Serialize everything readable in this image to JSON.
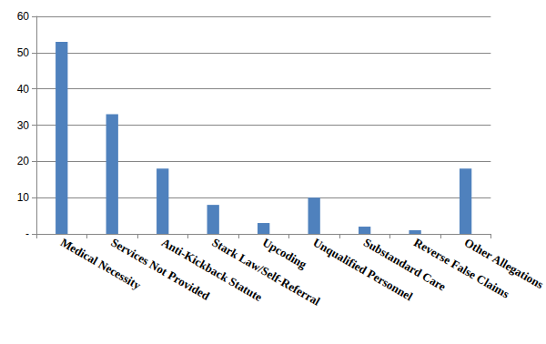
{
  "chart_data": {
    "type": "bar",
    "categories": [
      "Medical Necessity",
      "Services Not Provided",
      "Anti-Kickback Statute",
      "Stark Law/Self-Referral",
      "Upcoding",
      "Unqualified Personnel",
      "Substandard Care",
      "Reverse False Claims",
      "Other Allegations"
    ],
    "values": [
      53,
      33,
      18,
      8,
      3,
      10,
      2,
      1,
      18
    ],
    "color": "#4f81bd",
    "ylim": [
      0,
      60
    ],
    "yticks": [
      {
        "value": 0,
        "label": "-"
      },
      10,
      20,
      30,
      40,
      50,
      60
    ],
    "grid": true
  }
}
